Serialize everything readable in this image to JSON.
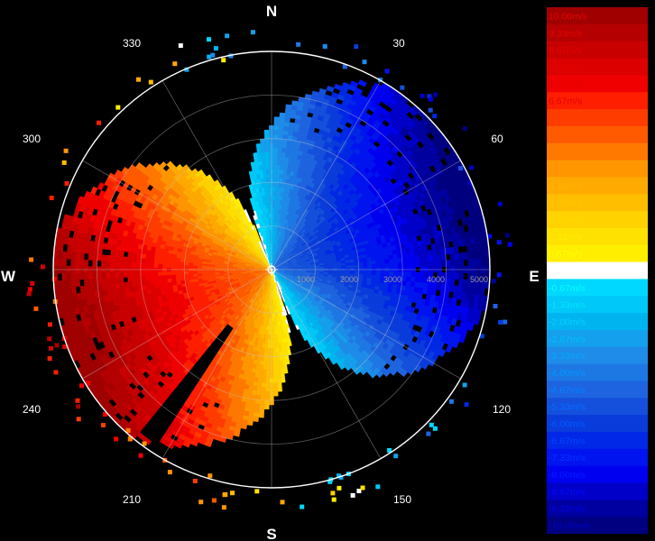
{
  "chart_data": {
    "type": "heatmap",
    "subtype": "polar-ppi-doppler-velocity",
    "cardinal_labels": [
      "N",
      "E",
      "S",
      "W"
    ],
    "bearing_labels": [
      "30",
      "60",
      "120",
      "150",
      "210",
      "240",
      "300",
      "330"
    ],
    "range_labels": [
      "1000",
      "2000",
      "3000",
      "4000",
      "5000"
    ],
    "max_range": 5000,
    "wind_from_deg": 250,
    "max_velocity": 10,
    "colorbar": {
      "labels": [
        "10.00m/s",
        "9.33m/s",
        "8.67m/s",
        "8.00m/s",
        "7.33m/s",
        "6.67m/s",
        "6.00m/s",
        "5.33m/s",
        "4.67m/s",
        "4.00m/s",
        "3.33m/s",
        "2.67m/s",
        "2.00m/s",
        "1.33m/s",
        "0.67m/s",
        "0.00m/s",
        "-0.67m/s",
        "-1.33m/s",
        "-2.00m/s",
        "-2.67m/s",
        "-3.33m/s",
        "-4.00m/s",
        "-4.67m/s",
        "-5.33m/s",
        "-6.00m/s",
        "-6.67m/s",
        "-7.33m/s",
        "-8.00m/s",
        "-8.67m/s",
        "-9.33m/s",
        "-10.00m/s"
      ],
      "colors": [
        "#a00000",
        "#b40000",
        "#c80000",
        "#dc0000",
        "#f00000",
        "#ff1e00",
        "#ff3c00",
        "#ff5a00",
        "#ff7800",
        "#ff9600",
        "#ffaa00",
        "#ffbe00",
        "#ffd200",
        "#ffe100",
        "#ffee00",
        "#ffffff",
        "#00d8ff",
        "#00c8f8",
        "#00b4f0",
        "#14a0ec",
        "#1e8ce8",
        "#1e78e4",
        "#1e64e0",
        "#1450dc",
        "#0a3cdc",
        "#0028e6",
        "#0014f0",
        "#0000f0",
        "#0000c8",
        "#0000a0",
        "#000080"
      ],
      "label_colors": [
        "#e60000",
        "#e60000",
        "#e60000",
        "#e60000",
        "#e60000",
        "#e60000",
        "#ff3c00",
        "#ff5a00",
        "#ff7800",
        "#ff9600",
        "#ffb400",
        "#ffc800",
        "#ffdc00",
        "#ffec00",
        "#ffff00",
        "#ffffff",
        "#00ffff",
        "#00e6ff",
        "#00d2ff",
        "#00beff",
        "#00aaff",
        "#0096ff",
        "#0082ff",
        "#006eff",
        "#005aff",
        "#0046ff",
        "#0032ff",
        "#001eff",
        "#000aff",
        "#0000e6",
        "#0000c8"
      ]
    }
  }
}
